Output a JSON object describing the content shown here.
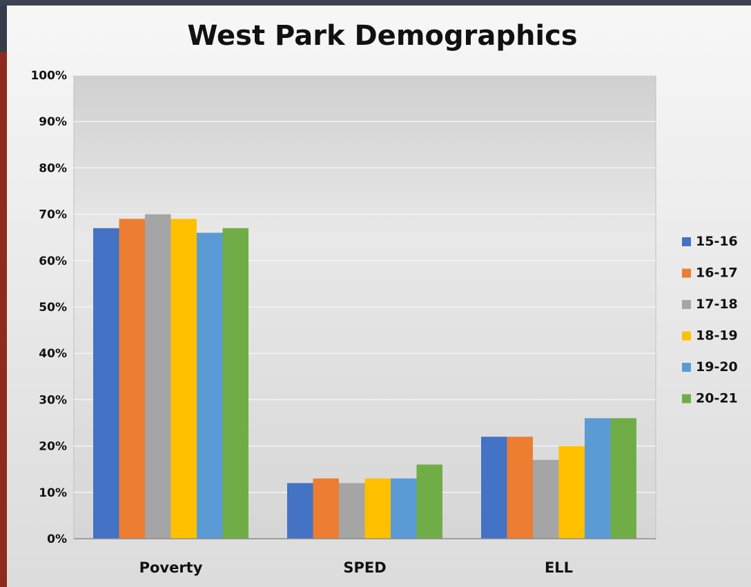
{
  "chart_data": {
    "type": "bar",
    "title": "West Park Demographics",
    "xlabel": "",
    "ylabel": "",
    "categories": [
      "Poverty",
      "SPED",
      "ELL"
    ],
    "series": [
      {
        "name": "15-16",
        "values": [
          67,
          12,
          22
        ]
      },
      {
        "name": "16-17",
        "values": [
          69,
          13,
          22
        ]
      },
      {
        "name": "17-18",
        "values": [
          70,
          12,
          17
        ]
      },
      {
        "name": "18-19",
        "values": [
          69,
          13,
          20
        ]
      },
      {
        "name": "19-20",
        "values": [
          66,
          13,
          26
        ]
      },
      {
        "name": "20-21",
        "values": [
          67,
          16,
          26
        ]
      }
    ],
    "ylim": [
      0,
      100
    ],
    "yticks": [
      "0%",
      "10%",
      "20%",
      "30%",
      "40%",
      "50%",
      "60%",
      "70%",
      "80%",
      "90%",
      "100%"
    ],
    "grid": true,
    "legend": "right",
    "colors": [
      "#4472c4",
      "#ed7d31",
      "#a5a5a5",
      "#ffc000",
      "#5b9bd5",
      "#70ad47"
    ]
  }
}
